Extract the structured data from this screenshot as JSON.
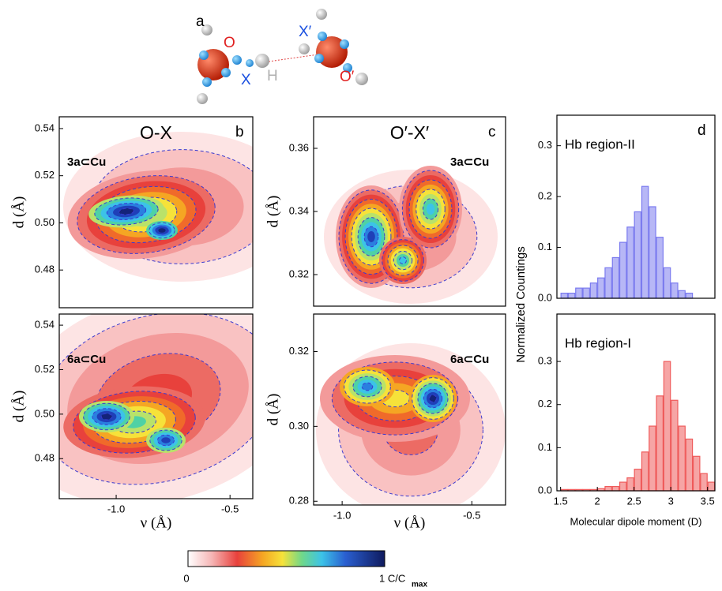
{
  "figure": {
    "panel_a": "a",
    "atoms": {
      "o": "O",
      "x": "X",
      "h": "H",
      "x2": "X′",
      "o2": "O′"
    },
    "colorbar": {
      "min_label": "0",
      "max_label": "1 C/C",
      "max_sub": "max"
    }
  },
  "chart_data": [
    {
      "type": "contour",
      "panel": "b",
      "title": "O-X",
      "annotation": "3a⊂Cu",
      "ylabel": "d (Å)",
      "xlim": [
        -1.25,
        -0.4
      ],
      "ylim": [
        0.464,
        0.545
      ],
      "yticks": [
        0.48,
        {
          "value": 0.5,
          "label": "0.50"
        },
        0.52,
        0.54
      ]
    },
    {
      "type": "contour",
      "annotation": "6a⊂Cu",
      "ylabel": "d (Å)",
      "xlabel": "ν (Å)",
      "xlim": [
        -1.25,
        -0.4
      ],
      "ylim": [
        0.462,
        0.545
      ],
      "xticks": [
        {
          "value": -1,
          "label": "-1.0"
        },
        {
          "value": -0.5,
          "label": "-0.5"
        }
      ],
      "yticks": [
        0.48,
        {
          "value": 0.5,
          "label": "0.50"
        },
        0.52,
        0.54
      ]
    },
    {
      "type": "contour",
      "panel": "c",
      "title": "O′-X′",
      "annotation": "3a⊂Cu",
      "ylabel": "d (Å)",
      "xlim": [
        -1.11,
        -0.37
      ],
      "ylim": [
        0.31,
        0.37
      ],
      "yticks": [
        0.32,
        0.34,
        0.36
      ]
    },
    {
      "type": "contour",
      "annotation": "6a⊂Cu",
      "ylabel": "d (Å)",
      "xlabel": "ν (Å)",
      "xlim": [
        -1.11,
        -0.37
      ],
      "ylim": [
        0.279,
        0.33
      ],
      "xticks": [
        {
          "value": -1,
          "label": "-1.0"
        },
        {
          "value": -0.5,
          "label": "-0.5"
        }
      ],
      "yticks": [
        0.28,
        {
          "value": 0.3,
          "label": "0.30"
        },
        0.32
      ]
    },
    {
      "type": "histogram",
      "panel": "d",
      "annotation": "Hb region-II",
      "color": "#7b7bef",
      "xlim": [
        1.45,
        3.6
      ],
      "ylim": [
        0,
        0.36
      ],
      "bins": [
        1.5,
        1.6,
        1.7,
        1.8,
        1.9,
        2.0,
        2.1,
        2.2,
        2.3,
        2.4,
        2.5,
        2.6,
        2.7,
        2.8,
        2.9,
        3.0,
        3.1,
        3.2,
        3.3,
        3.4,
        3.5
      ],
      "values": [
        0.01,
        0.01,
        0.02,
        0.02,
        0.03,
        0.04,
        0.06,
        0.08,
        0.11,
        0.14,
        0.17,
        0.22,
        0.18,
        0.12,
        0.06,
        0.03,
        0.015,
        0.01,
        0,
        0
      ],
      "yticks": [
        {
          "value": 0,
          "label": "0.0"
        },
        0.1,
        0.2,
        0.3
      ]
    },
    {
      "type": "histogram",
      "annotation": "Hb region-I",
      "color": "#ef5b5b",
      "xlabel": "Molecular dipole moment (D)",
      "ylabel": "Normalized Countings",
      "xlim": [
        1.45,
        3.6
      ],
      "ylim": [
        0,
        0.41
      ],
      "bins": [
        1.5,
        1.6,
        1.7,
        1.8,
        1.9,
        2.0,
        2.1,
        2.2,
        2.3,
        2.4,
        2.5,
        2.6,
        2.7,
        2.8,
        2.9,
        3.0,
        3.1,
        3.2,
        3.3,
        3.4,
        3.5,
        3.6
      ],
      "values": [
        0.003,
        0.003,
        0.003,
        0.003,
        0.003,
        0.005,
        0.01,
        0.01,
        0.02,
        0.03,
        0.05,
        0.09,
        0.15,
        0.22,
        0.3,
        0.21,
        0.15,
        0.12,
        0.08,
        0.04,
        0.02
      ],
      "xticks": [
        1.5,
        2,
        2.5,
        3,
        3.5
      ],
      "yticks": [
        {
          "value": 0,
          "label": "0.0"
        },
        0.1,
        0.2,
        0.3
      ]
    }
  ]
}
